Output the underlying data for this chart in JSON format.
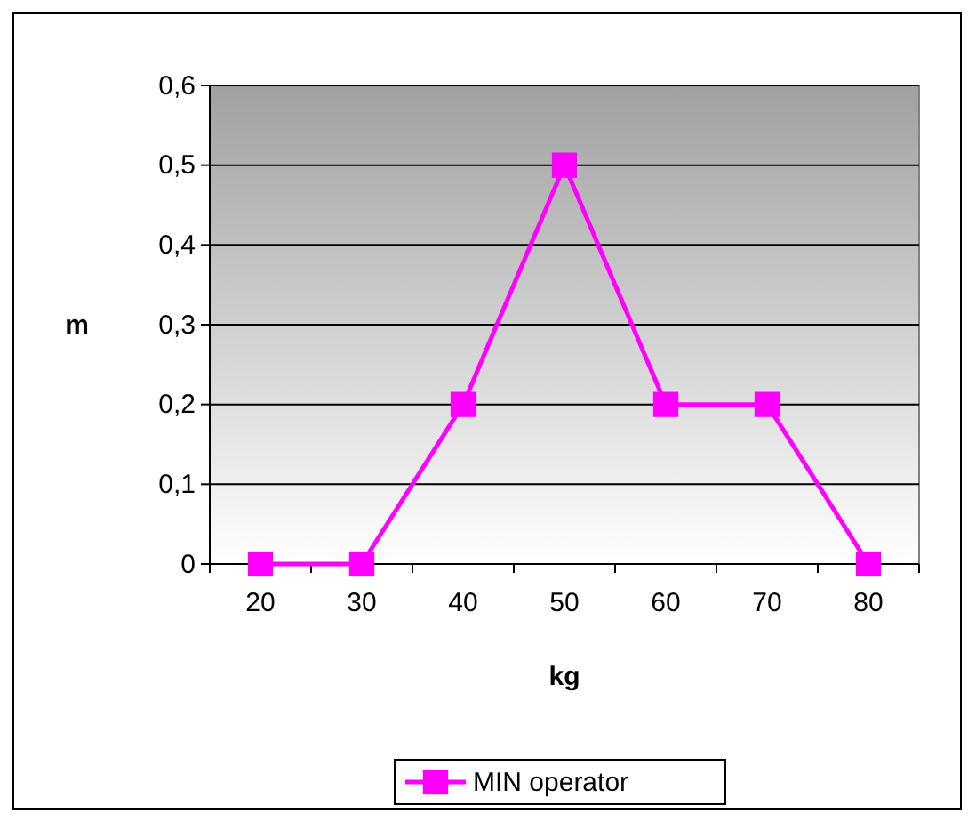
{
  "chart_data": {
    "type": "line",
    "xlabel": "kg",
    "ylabel": "m",
    "categories": [
      "20",
      "30",
      "40",
      "50",
      "60",
      "70",
      "80"
    ],
    "series": [
      {
        "name": "MIN operator",
        "color": "#ff00ff",
        "values": [
          0,
          0,
          0.2,
          0.5,
          0.2,
          0.2,
          0
        ]
      }
    ],
    "ylim": [
      0,
      0.6
    ],
    "yticks": [
      {
        "value": 0,
        "label": "0"
      },
      {
        "value": 0.1,
        "label": "0,1"
      },
      {
        "value": 0.2,
        "label": "0,2"
      },
      {
        "value": 0.3,
        "label": "0,3"
      },
      {
        "value": 0.4,
        "label": "0,4"
      },
      {
        "value": 0.5,
        "label": "0,5"
      },
      {
        "value": 0.6,
        "label": "0,6"
      }
    ],
    "grid": "y",
    "legend": "bottom",
    "marker": "square",
    "line_style": "solid"
  }
}
